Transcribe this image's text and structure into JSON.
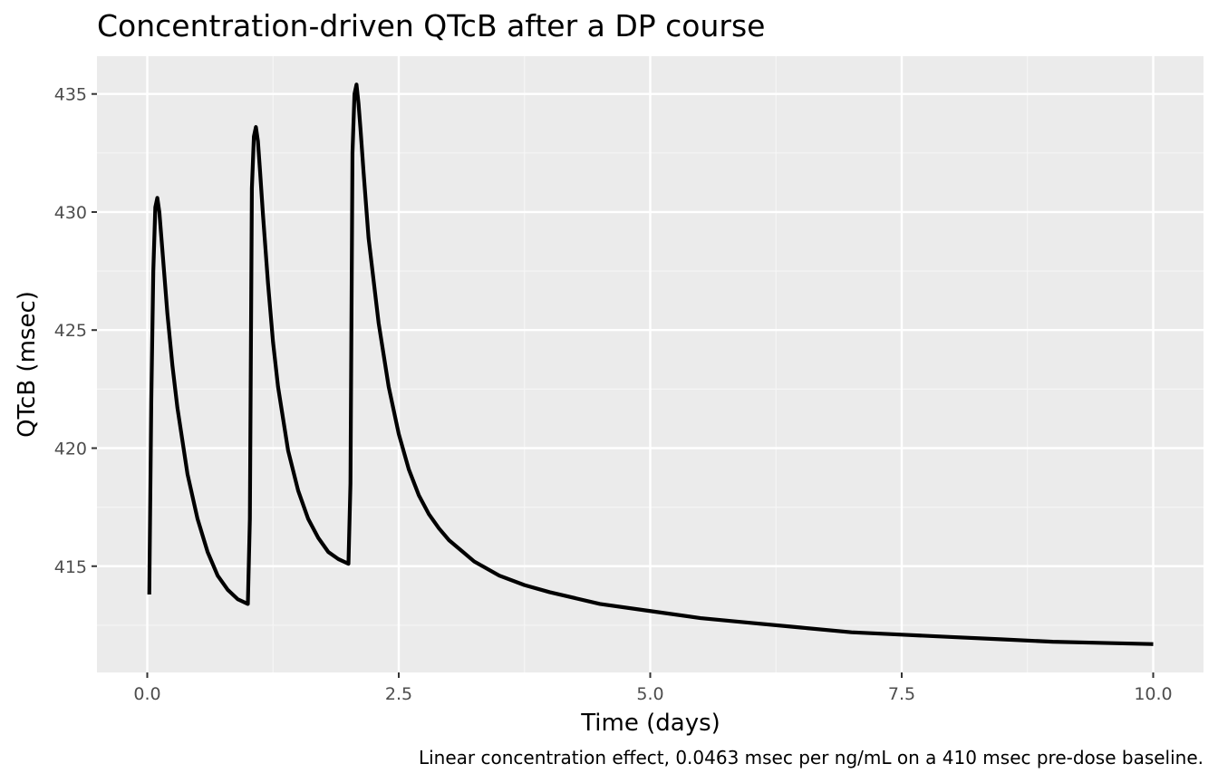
{
  "chart_data": {
    "type": "line",
    "title": "Concentration-driven QTcB after a DP course",
    "xlabel": "Time (days)",
    "ylabel": "QTcB (msec)",
    "caption": "Linear concentration effect, 0.0463 msec per ng/mL on a 410 msec pre-dose baseline.",
    "xlim": [
      -0.5,
      10.5
    ],
    "ylim": [
      410.5,
      436.6
    ],
    "x_ticks": [
      0,
      2.5,
      5,
      7.5,
      10
    ],
    "x_tick_labels": [
      "0.0",
      "2.5",
      "5.0",
      "7.5",
      "10.0"
    ],
    "y_ticks": [
      415,
      420,
      425,
      430,
      435
    ],
    "y_tick_labels": [
      "415",
      "420",
      "425",
      "430",
      "435"
    ],
    "grid": true,
    "legend": "none",
    "colors": {
      "panel_background": "#ebebeb",
      "grid_major": "#ffffff",
      "grid_minor": "#f5f5f5",
      "line": "#000000",
      "tick_text": "#4d4d4d",
      "tick_mark": "#333333"
    },
    "series": [
      {
        "x": [
          0.02,
          0.04,
          0.06,
          0.08,
          0.1,
          0.12,
          0.15,
          0.2,
          0.25,
          0.3,
          0.4,
          0.5,
          0.6,
          0.7,
          0.8,
          0.9,
          1.0,
          1.02,
          1.04,
          1.06,
          1.08,
          1.1,
          1.12,
          1.15,
          1.2,
          1.25,
          1.3,
          1.4,
          1.5,
          1.6,
          1.7,
          1.8,
          1.9,
          2.0,
          2.02,
          2.04,
          2.06,
          2.08,
          2.1,
          2.12,
          2.15,
          2.2,
          2.3,
          2.4,
          2.5,
          2.6,
          2.7,
          2.8,
          2.9,
          3.0,
          3.25,
          3.5,
          3.75,
          4.0,
          4.5,
          5.0,
          5.5,
          6.0,
          6.5,
          7.0,
          7.5,
          8.0,
          8.5,
          9.0,
          9.5,
          10.0
        ],
        "y": [
          413.8,
          422.0,
          427.5,
          430.2,
          430.6,
          430.0,
          428.4,
          425.7,
          423.5,
          421.7,
          418.9,
          417.0,
          415.6,
          414.6,
          414.0,
          413.6,
          413.4,
          417.0,
          431.0,
          433.2,
          433.6,
          433.0,
          431.8,
          429.9,
          427.0,
          424.5,
          422.6,
          419.9,
          418.2,
          417.0,
          416.2,
          415.6,
          415.3,
          415.1,
          418.5,
          432.5,
          435.0,
          435.4,
          434.6,
          433.5,
          431.7,
          428.9,
          425.3,
          422.6,
          420.6,
          419.1,
          418.0,
          417.2,
          416.6,
          416.1,
          415.2,
          414.6,
          414.2,
          413.9,
          413.4,
          413.1,
          412.8,
          412.6,
          412.4,
          412.2,
          412.1,
          412.0,
          411.9,
          411.8,
          411.75,
          411.7
        ]
      }
    ]
  }
}
